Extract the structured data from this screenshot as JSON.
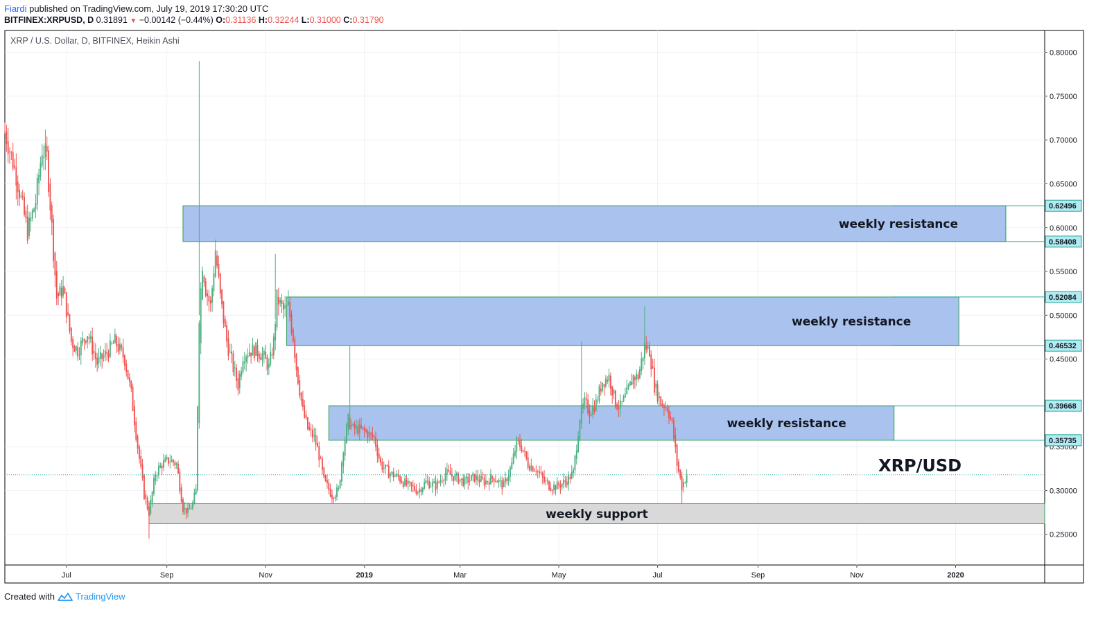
{
  "header": {
    "author": "Fiardi",
    "published_text": "published on TradingView.com, July 19, 2019 17:30:20 UTC",
    "symbol": "BITFINEX:XRPUSD, D",
    "last": "0.31891",
    "change_arrow": "▼",
    "change": "−0.00142 (−0.44%)",
    "o_label": "O:",
    "o": "0.31136",
    "h_label": "H:",
    "h": "0.32244",
    "l_label": "L:",
    "l": "0.31000",
    "c_label": "C:",
    "c": "0.31790"
  },
  "legend_title": "XRP / U.S. Dollar, D, BITFINEX, Heikin Ashi",
  "footer": {
    "created_with": "Created with",
    "brand": "TradingView"
  },
  "colors": {
    "up": "#26a69a",
    "up_body": "#4caf80",
    "down": "#ef5350",
    "zone_blue": "#a9c3ee",
    "zone_gray": "#d9d9d9",
    "zone_border": "#2e9e57",
    "price_line": "#26a69a"
  },
  "chart_data": {
    "type": "candlestick",
    "style": "Heikin Ashi",
    "interval": "D",
    "x_range": [
      "2018-05-24",
      "2020-02-25"
    ],
    "ylim": [
      0.215,
      0.825
    ],
    "y_ticks": [
      "0.80000",
      "0.75000",
      "0.70000",
      "0.65000",
      "0.60000",
      "0.55000",
      "0.50000",
      "0.45000",
      "0.35000",
      "0.30000",
      "0.25000"
    ],
    "x_ticks": [
      {
        "date": "2018-07-01",
        "label": "Jul",
        "bold": false
      },
      {
        "date": "2018-09-01",
        "label": "Sep",
        "bold": false
      },
      {
        "date": "2018-11-01",
        "label": "Nov",
        "bold": false
      },
      {
        "date": "2019-01-01",
        "label": "2019",
        "bold": true
      },
      {
        "date": "2019-03-01",
        "label": "Mar",
        "bold": false
      },
      {
        "date": "2019-05-01",
        "label": "May",
        "bold": false
      },
      {
        "date": "2019-07-01",
        "label": "Jul",
        "bold": false
      },
      {
        "date": "2019-09-01",
        "label": "Sep",
        "bold": false
      },
      {
        "date": "2019-11-01",
        "label": "Nov",
        "bold": false
      },
      {
        "date": "2020-01-01",
        "label": "2020",
        "bold": true
      }
    ],
    "price_labels": [
      {
        "value": 0.62496,
        "text": "0.62496"
      },
      {
        "value": 0.58408,
        "text": "0.58408"
      },
      {
        "value": 0.52084,
        "text": "0.52084"
      },
      {
        "value": 0.46532,
        "text": "0.46532"
      },
      {
        "value": 0.39668,
        "text": "0.39668"
      },
      {
        "value": 0.35735,
        "text": "0.35735"
      }
    ],
    "current_price": 0.3179,
    "zones": [
      {
        "label": "weekly resistance",
        "kind": "resistance",
        "start": "2018-09-11",
        "end": "2020-02-01",
        "low": 0.58408,
        "high": 0.62496
      },
      {
        "label": "weekly resistance",
        "kind": "resistance",
        "start": "2018-11-14",
        "end": "2020-01-03",
        "low": 0.46532,
        "high": 0.52084
      },
      {
        "label": "weekly resistance",
        "kind": "resistance",
        "start": "2018-12-10",
        "end": "2019-11-24",
        "low": 0.35735,
        "high": 0.39668
      },
      {
        "label": "weekly support",
        "kind": "support",
        "start": "2018-08-21",
        "end": "2020-02-25",
        "low": 0.262,
        "high": 0.285
      }
    ],
    "annotation": {
      "text": "XRP/USD",
      "date": "2019-12-10",
      "value": 0.33
    },
    "price_path": [
      [
        "2018-05-24",
        0.71
      ],
      [
        "2018-05-31",
        0.66
      ],
      [
        "2018-06-07",
        0.595
      ],
      [
        "2018-06-12",
        0.63
      ],
      [
        "2018-06-16",
        0.69
      ],
      [
        "2018-06-19",
        0.68
      ],
      [
        "2018-06-25",
        0.52
      ],
      [
        "2018-06-29",
        0.53
      ],
      [
        "2018-07-04",
        0.47
      ],
      [
        "2018-07-08",
        0.46
      ],
      [
        "2018-07-14",
        0.48
      ],
      [
        "2018-07-20",
        0.445
      ],
      [
        "2018-07-25",
        0.455
      ],
      [
        "2018-07-31",
        0.47
      ],
      [
        "2018-08-03",
        0.46
      ],
      [
        "2018-08-06",
        0.45
      ],
      [
        "2018-08-10",
        0.41
      ],
      [
        "2018-08-14",
        0.35
      ],
      [
        "2018-08-18",
        0.295
      ],
      [
        "2018-08-21",
        0.275
      ],
      [
        "2018-08-25",
        0.32
      ],
      [
        "2018-08-29",
        0.33
      ],
      [
        "2018-09-03",
        0.335
      ],
      [
        "2018-09-07",
        0.33
      ],
      [
        "2018-09-11",
        0.28
      ],
      [
        "2018-09-14",
        0.275
      ],
      [
        "2018-09-17",
        0.285
      ],
      [
        "2018-09-19",
        0.3
      ],
      [
        "2018-09-21",
        0.5
      ],
      [
        "2018-09-23",
        0.56
      ],
      [
        "2018-09-25",
        0.53
      ],
      [
        "2018-09-28",
        0.51
      ],
      [
        "2018-10-01",
        0.575
      ],
      [
        "2018-10-04",
        0.52
      ],
      [
        "2018-10-08",
        0.47
      ],
      [
        "2018-10-12",
        0.44
      ],
      [
        "2018-10-15",
        0.42
      ],
      [
        "2018-10-18",
        0.455
      ],
      [
        "2018-10-22",
        0.46
      ],
      [
        "2018-10-26",
        0.46
      ],
      [
        "2018-10-30",
        0.455
      ],
      [
        "2018-11-03",
        0.44
      ],
      [
        "2018-11-06",
        0.47
      ],
      [
        "2018-11-08",
        0.52
      ],
      [
        "2018-11-12",
        0.505
      ],
      [
        "2018-11-15",
        0.51
      ],
      [
        "2018-11-18",
        0.475
      ],
      [
        "2018-11-20",
        0.44
      ],
      [
        "2018-11-24",
        0.39
      ],
      [
        "2018-11-27",
        0.37
      ],
      [
        "2018-12-01",
        0.36
      ],
      [
        "2018-12-04",
        0.34
      ],
      [
        "2018-12-07",
        0.31
      ],
      [
        "2018-12-12",
        0.295
      ],
      [
        "2018-12-16",
        0.3
      ],
      [
        "2018-12-19",
        0.35
      ],
      [
        "2018-12-22",
        0.38
      ],
      [
        "2018-12-25",
        0.37
      ],
      [
        "2018-12-29",
        0.37
      ],
      [
        "2019-01-03",
        0.365
      ],
      [
        "2019-01-07",
        0.36
      ],
      [
        "2019-01-11",
        0.33
      ],
      [
        "2019-01-16",
        0.32
      ],
      [
        "2019-01-22",
        0.315
      ],
      [
        "2019-01-28",
        0.305
      ],
      [
        "2019-02-03",
        0.3
      ],
      [
        "2019-02-08",
        0.31
      ],
      [
        "2019-02-14",
        0.305
      ],
      [
        "2019-02-20",
        0.32
      ],
      [
        "2019-02-26",
        0.315
      ],
      [
        "2019-03-04",
        0.31
      ],
      [
        "2019-03-10",
        0.315
      ],
      [
        "2019-03-16",
        0.31
      ],
      [
        "2019-03-22",
        0.315
      ],
      [
        "2019-03-28",
        0.305
      ],
      [
        "2019-04-02",
        0.33
      ],
      [
        "2019-04-05",
        0.355
      ],
      [
        "2019-04-08",
        0.35
      ],
      [
        "2019-04-12",
        0.33
      ],
      [
        "2019-04-17",
        0.325
      ],
      [
        "2019-04-22",
        0.31
      ],
      [
        "2019-04-26",
        0.305
      ],
      [
        "2019-04-30",
        0.305
      ],
      [
        "2019-05-05",
        0.31
      ],
      [
        "2019-05-10",
        0.32
      ],
      [
        "2019-05-14",
        0.385
      ],
      [
        "2019-05-17",
        0.4
      ],
      [
        "2019-05-20",
        0.39
      ],
      [
        "2019-05-24",
        0.4
      ],
      [
        "2019-05-28",
        0.425
      ],
      [
        "2019-06-01",
        0.43
      ],
      [
        "2019-06-05",
        0.4
      ],
      [
        "2019-06-08",
        0.395
      ],
      [
        "2019-06-12",
        0.41
      ],
      [
        "2019-06-16",
        0.43
      ],
      [
        "2019-06-19",
        0.43
      ],
      [
        "2019-06-23",
        0.465
      ],
      [
        "2019-06-26",
        0.46
      ],
      [
        "2019-06-29",
        0.42
      ],
      [
        "2019-07-03",
        0.4
      ],
      [
        "2019-07-07",
        0.395
      ],
      [
        "2019-07-10",
        0.375
      ],
      [
        "2019-07-13",
        0.33
      ],
      [
        "2019-07-16",
        0.305
      ],
      [
        "2019-07-19",
        0.318
      ]
    ],
    "wick_spikes": [
      {
        "date": "2018-09-21",
        "high": 0.79
      },
      {
        "date": "2018-11-07",
        "high": 0.57
      },
      {
        "date": "2018-12-23",
        "high": 0.465
      },
      {
        "date": "2019-05-15",
        "high": 0.47
      },
      {
        "date": "2019-06-23",
        "high": 0.51
      },
      {
        "date": "2018-08-21",
        "low": 0.245
      },
      {
        "date": "2019-07-16",
        "low": 0.285
      }
    ]
  }
}
